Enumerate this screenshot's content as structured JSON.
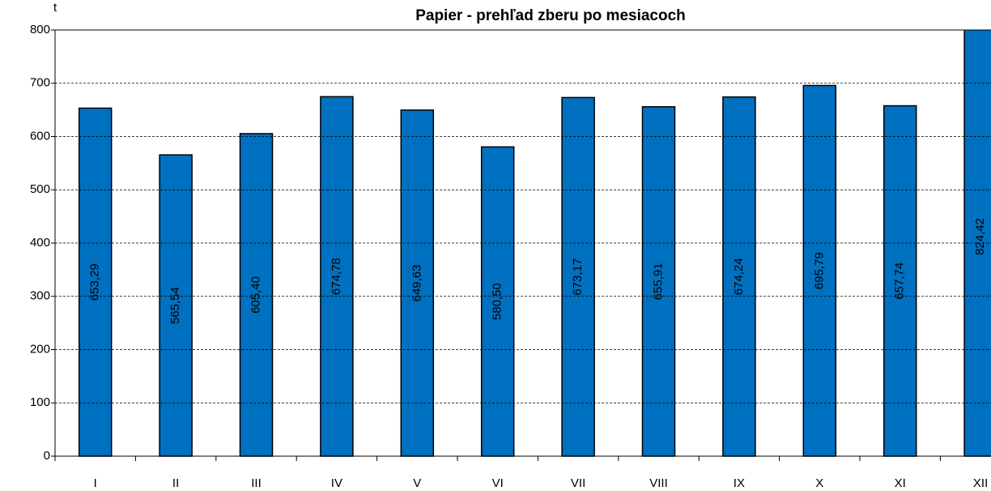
{
  "chart_data": {
    "type": "bar",
    "title": "Papier - prehľad zberu po mesiacoch",
    "y_axis_label": "t",
    "categories": [
      "I",
      "II",
      "III",
      "IV",
      "V",
      "VI",
      "VII",
      "VIII",
      "IX",
      "X",
      "XI",
      "XII"
    ],
    "values": [
      653.29,
      565.54,
      605.4,
      674.78,
      649.63,
      580.5,
      673.17,
      655.91,
      674.24,
      695.79,
      657.74,
      824.42
    ],
    "value_labels": [
      "653,29",
      "565,54",
      "605,40",
      "674,78",
      "649,63",
      "580,50",
      "673,17",
      "655,91",
      "674,24",
      "695,79",
      "657,74",
      "824,42"
    ],
    "color": "#0070c0",
    "ylim": [
      0,
      800
    ],
    "yticks": [
      0,
      100,
      200,
      300,
      400,
      500,
      600,
      700,
      800
    ],
    "grid": true
  }
}
